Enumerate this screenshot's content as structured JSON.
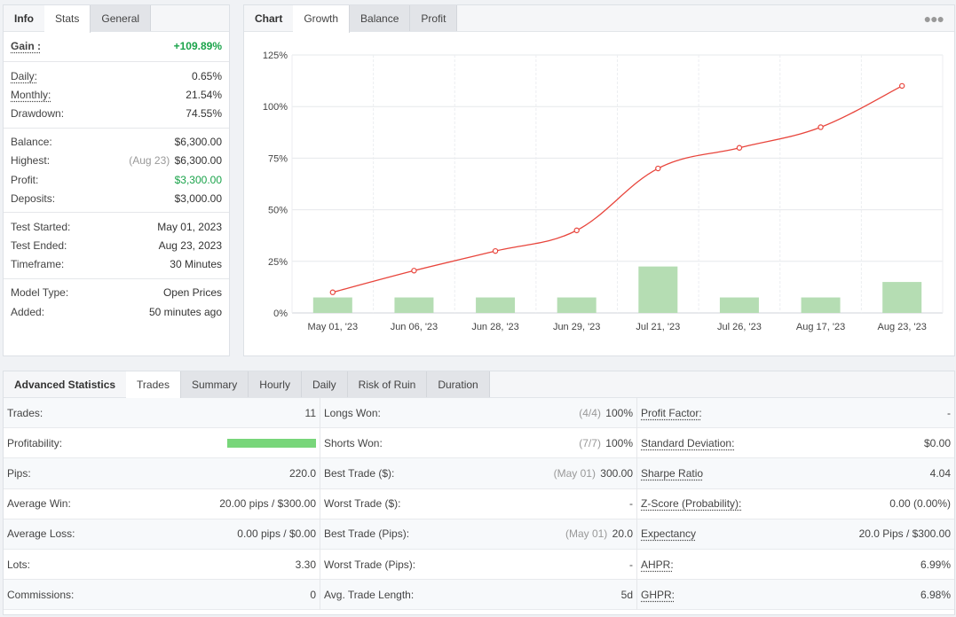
{
  "info_panel": {
    "tabs": [
      "Info",
      "Stats",
      "General"
    ],
    "gain": {
      "label": "Gain :",
      "value": "+109.89%"
    },
    "group1": [
      {
        "label": "Daily:",
        "value": "0.65%"
      },
      {
        "label": "Monthly:",
        "value": "21.54%"
      },
      {
        "label": "Drawdown:",
        "value": "74.55%"
      }
    ],
    "group2": [
      {
        "label": "Balance:",
        "value": "$6,300.00"
      },
      {
        "label": "Highest:",
        "note": "(Aug 23)",
        "value": "$6,300.00"
      },
      {
        "label": "Profit:",
        "value": "$3,300.00"
      },
      {
        "label": "Deposits:",
        "value": "$3,000.00"
      }
    ],
    "group3": [
      {
        "label": "Test Started:",
        "value": "May 01, 2023"
      },
      {
        "label": "Test Ended:",
        "value": "Aug 23, 2023"
      },
      {
        "label": "Timeframe:",
        "value": "30 Minutes"
      }
    ],
    "group4": [
      {
        "label": "Model Type:",
        "value": "Open Prices"
      },
      {
        "label": "Added:",
        "value": "50 minutes ago"
      }
    ]
  },
  "chart_panel": {
    "tabs": [
      "Chart",
      "Growth",
      "Balance",
      "Profit"
    ],
    "more_icon": "more-dots-icon"
  },
  "chart_data": {
    "type": "line",
    "categories": [
      "May 01, '23",
      "Jun 06, '23",
      "Jun 28, '23",
      "Jun 29, '23",
      "Jul 21, '23",
      "Jul 26, '23",
      "Aug 17, '23",
      "Aug 23, '23"
    ],
    "y_ticks": [
      "0%",
      "25%",
      "50%",
      "75%",
      "100%",
      "125%"
    ],
    "ylim": [
      0,
      125
    ],
    "series": [
      {
        "kind": "line",
        "values": [
          10,
          20.5,
          30,
          40,
          70,
          80,
          90,
          110
        ],
        "color": "#e8453c"
      },
      {
        "kind": "bar",
        "values": [
          7.5,
          7.5,
          7.5,
          7.5,
          22.5,
          7.5,
          7.5,
          15
        ],
        "color": "#b5ddb3"
      }
    ],
    "grid": true
  },
  "advanced": {
    "tabs": [
      "Advanced Statistics",
      "Trades",
      "Summary",
      "Hourly",
      "Daily",
      "Risk of Ruin",
      "Duration"
    ],
    "col1": [
      {
        "label": "Trades:",
        "value": "11"
      },
      {
        "label": "Profitability:",
        "value": "",
        "bar": 1.0
      },
      {
        "label": "Pips:",
        "value": "220.0"
      },
      {
        "label": "Average Win:",
        "value": "20.00 pips / $300.00"
      },
      {
        "label": "Average Loss:",
        "value": "0.00 pips / $0.00"
      },
      {
        "label": "Lots:",
        "value": "3.30"
      },
      {
        "label": "Commissions:",
        "value": "0"
      }
    ],
    "col2": [
      {
        "label": "Longs Won:",
        "note": "(4/4)",
        "value": "100%"
      },
      {
        "label": "Shorts Won:",
        "note": "(7/7)",
        "value": "100%"
      },
      {
        "label": "Best Trade ($):",
        "note": "(May 01)",
        "value": "300.00"
      },
      {
        "label": "Worst Trade ($):",
        "note": "",
        "value": "-"
      },
      {
        "label": "Best Trade (Pips):",
        "note": "(May 01)",
        "value": "20.0"
      },
      {
        "label": "Worst Trade (Pips):",
        "note": "",
        "value": "-"
      },
      {
        "label": "Avg. Trade Length:",
        "note": "",
        "value": "5d"
      }
    ],
    "col3": [
      {
        "label": "Profit Factor:",
        "value": "-"
      },
      {
        "label": "Standard Deviation:",
        "value": "$0.00"
      },
      {
        "label": "Sharpe Ratio",
        "value": "4.04"
      },
      {
        "label": "Z-Score (Probability):",
        "value": "0.00 (0.00%)"
      },
      {
        "label": "Expectancy",
        "value": "20.0 Pips / $300.00"
      },
      {
        "label": "AHPR:",
        "value": "6.99%"
      },
      {
        "label": "GHPR:",
        "value": "6.98%"
      }
    ]
  }
}
